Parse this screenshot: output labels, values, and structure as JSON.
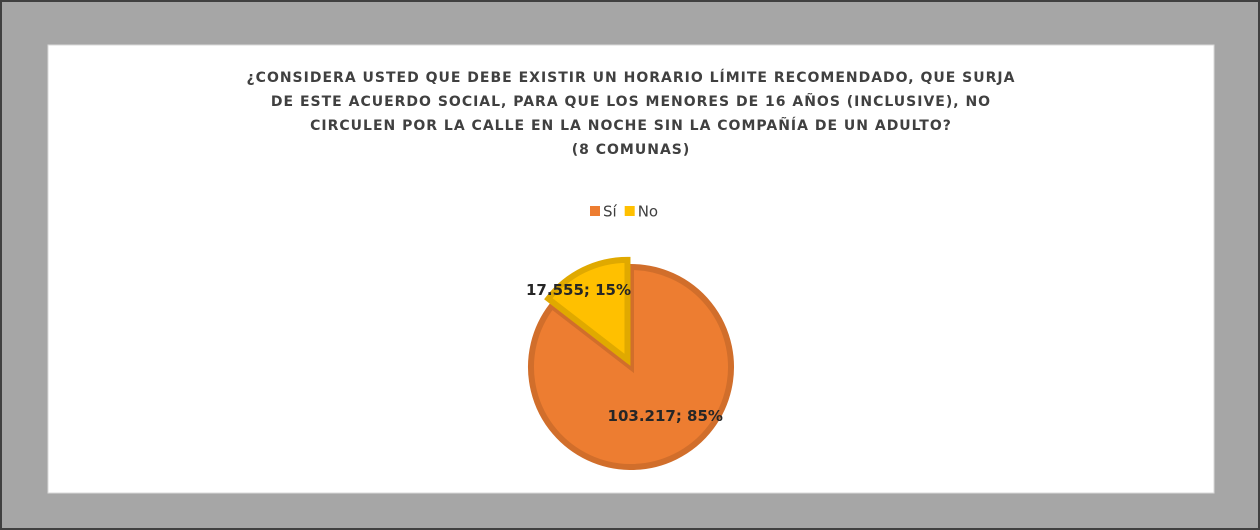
{
  "chart_data": {
    "type": "pie",
    "title": [
      "¿CONSIDERA USTED QUE DEBE EXISTIR UN HORARIO LÍMITE RECOMENDADO, QUE SURJA",
      "DE ESTE ACUERDO SOCIAL, PARA QUE LOS MENORES DE 16 AÑOS (INCLUSIVE), NO",
      "CIRCULEN POR LA CALLE EN LA NOCHE SIN LA COMPAÑÍA DE UN ADULTO?"
    ],
    "subtitle": "(8 COMUNAS)",
    "categories": [
      "Sí",
      "No"
    ],
    "values": [
      103217,
      17555
    ],
    "value_labels": [
      "103.217; 85%",
      "17.555; 15%"
    ],
    "colors": [
      "#ed7d31",
      "#ffc000"
    ],
    "legend": "top"
  }
}
